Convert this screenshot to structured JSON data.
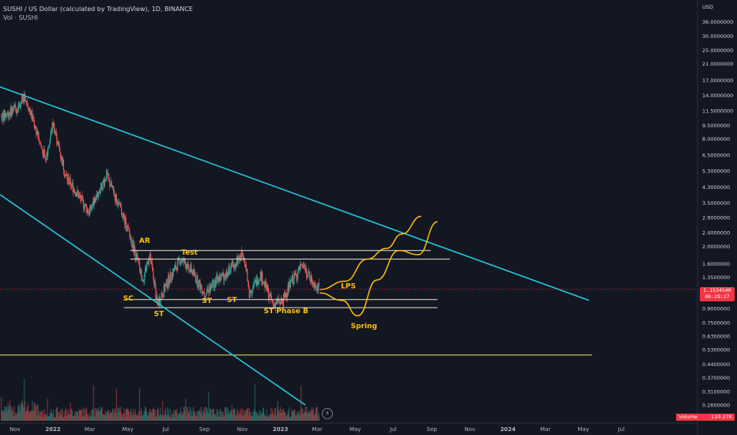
{
  "header": {
    "title": "SUSHI / US Dollar (calculated by TradingView), 1D, BINANCE",
    "indicator": "Vol · SUSHI"
  },
  "price_axis": {
    "currency": "USD",
    "ticks": [
      "36.0000000",
      "30.0000000",
      "25.0000000",
      "21.0000000",
      "17.0000000",
      "14.0000000",
      "11.5000000",
      "9.5000000",
      "8.0000000",
      "6.5000000",
      "5.3000000",
      "4.3000000",
      "3.5000000",
      "2.9000000",
      "2.4000000",
      "2.0000000",
      "1.6000000",
      "1.3500000",
      "0.9000000",
      "0.7500000",
      "0.6300000",
      "0.5300000",
      "0.4400000",
      "0.3700000",
      "0.3100000",
      "0.2600000"
    ],
    "last_price": "1.1534540",
    "countdown": "06:29:27"
  },
  "volume_badge": {
    "name": "Volume",
    "value": "110.27K"
  },
  "time_axis": [
    "Nov",
    "2022",
    "Mar",
    "May",
    "Jul",
    "Sep",
    "Nov",
    "2023",
    "Mar",
    "May",
    "Jul",
    "Sep",
    "Nov",
    "2024",
    "Mar",
    "May",
    "Jul"
  ],
  "icons": {
    "replay": "lightning-icon"
  },
  "colors": {
    "background": "#131722",
    "up": "#26a69a",
    "down": "#ef5350",
    "trendline": "#26c6da",
    "annotation": "#ffc107",
    "range_lines": "#e8e8d0",
    "yellow_line": "#f5e663",
    "price_line": "#f23645"
  },
  "chart_data": {
    "type": "candlestick",
    "scale": "log",
    "price_range": [
      0.24,
      44
    ],
    "date_range": [
      "2021-10-08",
      "2024-08-16"
    ],
    "series_close_approx": [
      {
        "date": "2021-10-10",
        "close": 10.6
      },
      {
        "date": "2021-11-05",
        "close": 12.0
      },
      {
        "date": "2021-11-17",
        "close": 14.0
      },
      {
        "date": "2021-12-05",
        "close": 9.0
      },
      {
        "date": "2021-12-20",
        "close": 6.0
      },
      {
        "date": "2022-01-01",
        "close": 9.8
      },
      {
        "date": "2022-01-22",
        "close": 4.9
      },
      {
        "date": "2022-02-08",
        "close": 4.0
      },
      {
        "date": "2022-02-28",
        "close": 3.1
      },
      {
        "date": "2022-03-28",
        "close": 5.0
      },
      {
        "date": "2022-04-20",
        "close": 3.2
      },
      {
        "date": "2022-05-10",
        "close": 2.0
      },
      {
        "date": "2022-05-25",
        "close": 1.3
      },
      {
        "date": "2022-06-05",
        "close": 1.8
      },
      {
        "date": "2022-06-18",
        "close": 0.95
      },
      {
        "date": "2022-07-05",
        "close": 1.3
      },
      {
        "date": "2022-07-25",
        "close": 1.7
      },
      {
        "date": "2022-08-10",
        "close": 1.5
      },
      {
        "date": "2022-09-01",
        "close": 1.1
      },
      {
        "date": "2022-09-20",
        "close": 1.3
      },
      {
        "date": "2022-10-05",
        "close": 1.4
      },
      {
        "date": "2022-11-03",
        "close": 1.85
      },
      {
        "date": "2022-11-12",
        "close": 1.1
      },
      {
        "date": "2022-11-30",
        "close": 1.4
      },
      {
        "date": "2022-12-20",
        "close": 0.95
      },
      {
        "date": "2023-01-05",
        "close": 1.0
      },
      {
        "date": "2023-01-20",
        "close": 1.3
      },
      {
        "date": "2023-02-05",
        "close": 1.55
      },
      {
        "date": "2023-02-20",
        "close": 1.3
      },
      {
        "date": "2023-03-05",
        "close": 1.15
      }
    ],
    "volume_series": "daily volume bars (pane at bottom)",
    "horizontal_levels": [
      {
        "price": 1.9,
        "from": "2022-05-05",
        "to": "2023-08-30"
      },
      {
        "price": 1.7,
        "from": "2022-05-05",
        "to": "2023-09-30"
      },
      {
        "price": 1.01,
        "from": "2022-04-25",
        "to": "2023-09-10"
      },
      {
        "price": 0.91,
        "from": "2022-04-25",
        "to": "2023-09-10"
      },
      {
        "price": 0.495,
        "from": "2021-10-08",
        "to": "2024-05-15"
      }
    ],
    "trendlines": [
      {
        "from": {
          "date": "2021-10-08",
          "price": 15.6
        },
        "to": {
          "date": "2024-05-10",
          "price": 1.0
        }
      },
      {
        "from": {
          "date": "2021-10-08",
          "price": 3.9
        },
        "to": {
          "date": "2023-02-10",
          "price": 0.26
        }
      }
    ],
    "projections": [
      {
        "points": [
          [
            "2023-03-05",
            1.15
          ],
          [
            "2023-04-15",
            1.28
          ],
          [
            "2023-05-20",
            1.7
          ],
          [
            "2023-06-20",
            1.95
          ],
          [
            "2023-07-15",
            2.35
          ],
          [
            "2023-08-15",
            2.95
          ]
        ]
      },
      {
        "points": [
          [
            "2023-03-05",
            1.1
          ],
          [
            "2023-04-10",
            1.0
          ],
          [
            "2023-05-05",
            0.82
          ],
          [
            "2023-06-05",
            1.3
          ],
          [
            "2023-07-10",
            1.9
          ],
          [
            "2023-08-10",
            1.8
          ],
          [
            "2023-09-10",
            2.75
          ]
        ]
      }
    ],
    "annotations": [
      {
        "text": "AR",
        "date": "2022-05-28",
        "price": 2.1
      },
      {
        "text": "Test",
        "date": "2022-08-08",
        "price": 1.8
      },
      {
        "text": "SC",
        "date": "2022-05-02",
        "price": 1.0
      },
      {
        "text": "ST",
        "date": "2022-06-20",
        "price": 0.82
      },
      {
        "text": "ST",
        "date": "2022-09-05",
        "price": 0.97
      },
      {
        "text": "ST",
        "date": "2022-10-15",
        "price": 0.98
      },
      {
        "text": "ST Phase B",
        "date": "2023-01-10",
        "price": 0.85
      },
      {
        "text": "LPS",
        "date": "2023-04-20",
        "price": 1.17
      },
      {
        "text": "Spring",
        "date": "2023-05-15",
        "price": 0.7
      }
    ]
  }
}
